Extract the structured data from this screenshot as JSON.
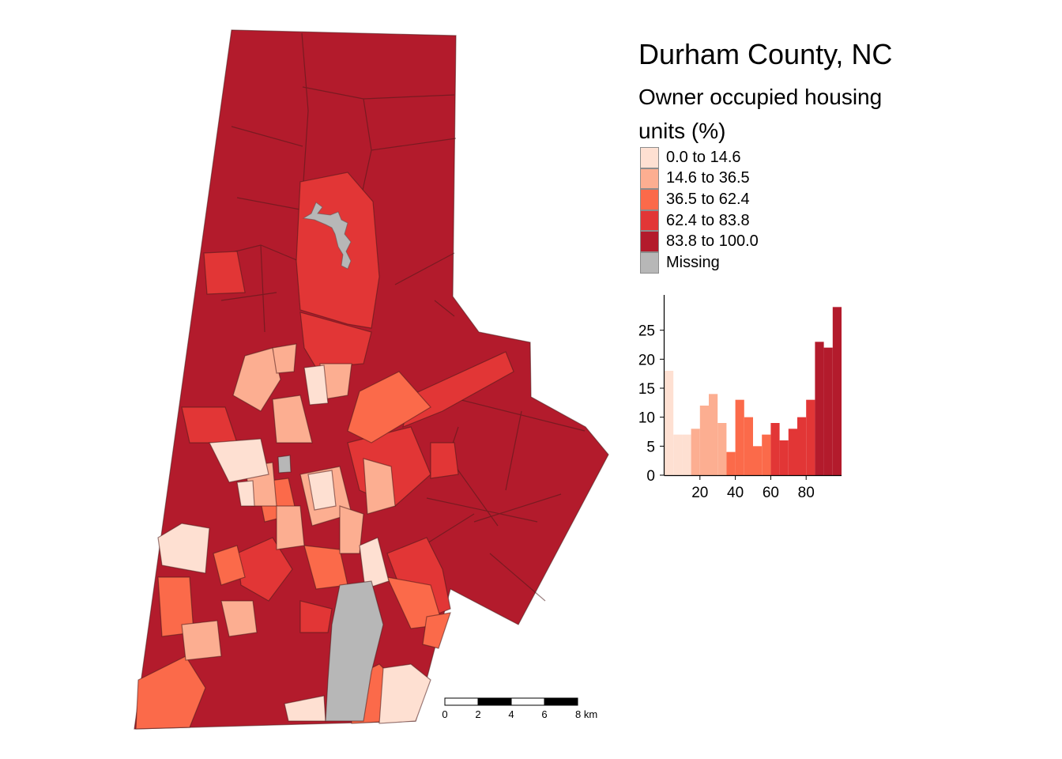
{
  "title": "Durham County, NC",
  "subtitle": "Owner occupied housing units (%)",
  "legend": [
    {
      "label": "0.0 to 14.6",
      "color": "#fee0d2"
    },
    {
      "label": "14.6 to 36.5",
      "color": "#fcae91"
    },
    {
      "label": "36.5 to 62.4",
      "color": "#fb6a4a"
    },
    {
      "label": "62.4 to 83.8",
      "color": "#e23636"
    },
    {
      "label": "83.8 to 100.0",
      "color": "#b31b2c"
    },
    {
      "label": "Missing",
      "color": "#b7b7b7"
    }
  ],
  "scale_bar": {
    "labels": [
      "0",
      "2",
      "4",
      "6",
      "8 km"
    ]
  },
  "histogram": {
    "type": "bar",
    "bin_width": 5,
    "x": [
      2.5,
      7.5,
      12.5,
      17.5,
      22.5,
      27.5,
      32.5,
      37.5,
      42.5,
      47.5,
      52.5,
      57.5,
      62.5,
      67.5,
      72.5,
      77.5,
      82.5,
      87.5,
      92.5,
      97.5
    ],
    "values": [
      18,
      7,
      7,
      8,
      12,
      14,
      9,
      4,
      13,
      10,
      5,
      7,
      9,
      6,
      8,
      10,
      13,
      23,
      22,
      29
    ],
    "class_index": [
      0,
      0,
      0,
      1,
      1,
      1,
      1,
      2,
      2,
      2,
      2,
      2,
      3,
      3,
      3,
      3,
      3,
      4,
      4,
      4
    ],
    "xlim": [
      0,
      100
    ],
    "ylim": [
      0,
      30
    ],
    "x_ticks": [
      20,
      40,
      60,
      80
    ],
    "y_ticks": [
      0,
      5,
      10,
      15,
      20,
      25
    ]
  }
}
